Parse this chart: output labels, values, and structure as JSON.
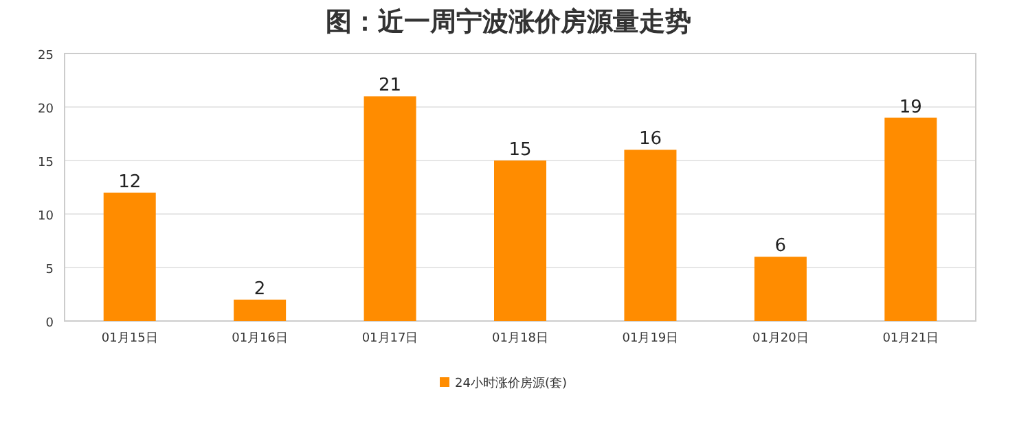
{
  "chart_data": {
    "type": "bar",
    "title": "图：近一周宁波涨价房源量走势",
    "categories": [
      "01月15日",
      "01月16日",
      "01月17日",
      "01月18日",
      "01月19日",
      "01月20日",
      "01月21日"
    ],
    "series": [
      {
        "name": "24小时涨价房源(套)",
        "color": "#ff8c00",
        "values": [
          12,
          2,
          21,
          15,
          16,
          6,
          19
        ]
      }
    ],
    "ylim": [
      0,
      25
    ],
    "yticks": [
      0,
      5,
      10,
      15,
      20,
      25
    ],
    "grid": "y",
    "legend": "bottom",
    "data_labels": true
  }
}
